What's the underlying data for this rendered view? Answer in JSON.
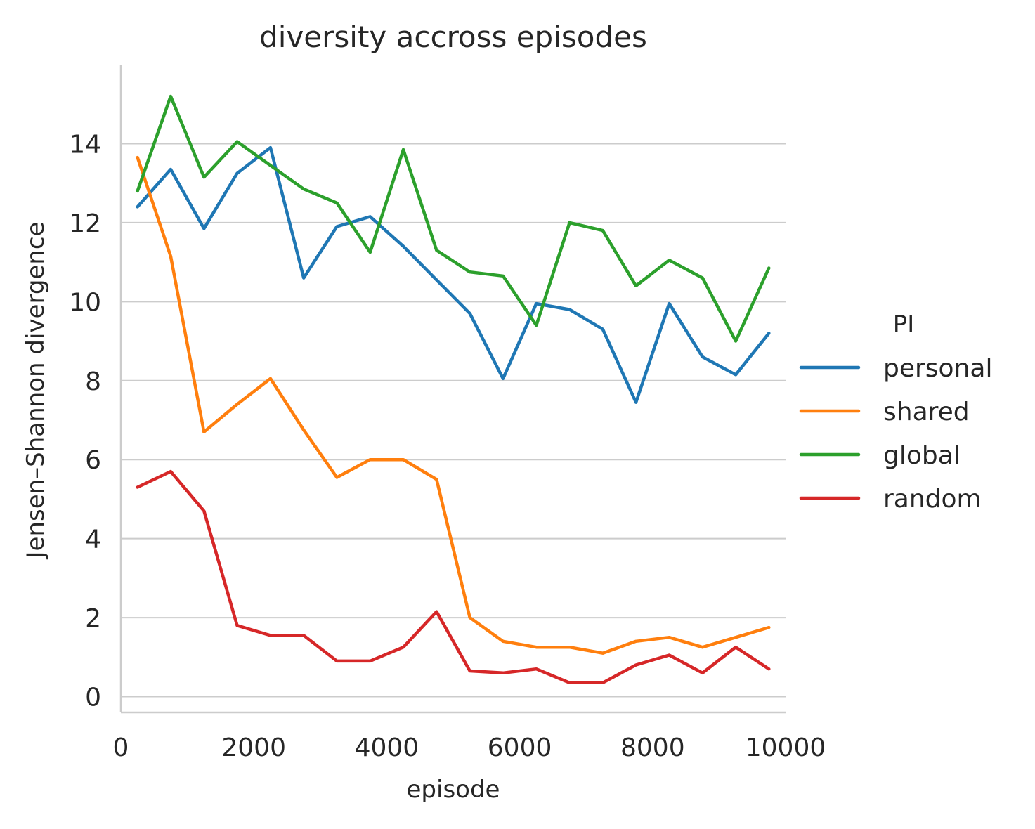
{
  "chart_data": {
    "type": "line",
    "title": "diversity accross episodes",
    "xlabel": "episode",
    "ylabel": "Jensen–Shannon divergence",
    "xlim": [
      0,
      10000
    ],
    "ylim": [
      -0.4,
      16.0
    ],
    "xticks": [
      0,
      2000,
      4000,
      6000,
      8000,
      10000
    ],
    "yticks": [
      0,
      2,
      4,
      6,
      8,
      10,
      12,
      14
    ],
    "grid": "y",
    "legend": {
      "title": "PI",
      "placement": "right"
    },
    "x": [
      250,
      750,
      1250,
      1750,
      2250,
      2750,
      3250,
      3750,
      4250,
      4750,
      5250,
      5750,
      6250,
      6750,
      7250,
      7750,
      8250,
      8750,
      9250,
      9750
    ],
    "series": [
      {
        "name": "personal",
        "color": "#1f77b4",
        "values": [
          12.4,
          13.35,
          11.85,
          13.25,
          13.9,
          10.6,
          11.9,
          12.15,
          11.4,
          10.55,
          9.7,
          8.05,
          9.95,
          9.8,
          9.3,
          7.45,
          9.95,
          8.6,
          8.15,
          9.2
        ]
      },
      {
        "name": "shared",
        "color": "#ff7f0e",
        "values": [
          13.65,
          11.15,
          6.7,
          7.4,
          8.05,
          6.75,
          5.55,
          6.0,
          6.0,
          5.5,
          2.0,
          1.4,
          1.25,
          1.25,
          1.1,
          1.4,
          1.5,
          1.25,
          1.5,
          1.75
        ]
      },
      {
        "name": "global",
        "color": "#2ca02c",
        "values": [
          12.8,
          15.2,
          13.15,
          14.05,
          13.45,
          12.85,
          12.5,
          11.25,
          13.85,
          11.3,
          10.75,
          10.65,
          9.4,
          12.0,
          11.8,
          10.4,
          11.05,
          10.6,
          9.0,
          10.85
        ]
      },
      {
        "name": "random",
        "color": "#d62728",
        "values": [
          5.3,
          5.7,
          4.7,
          1.8,
          1.55,
          1.55,
          0.9,
          0.9,
          1.25,
          2.15,
          0.65,
          0.6,
          0.7,
          0.35,
          0.35,
          0.8,
          1.05,
          0.6,
          1.25,
          0.7
        ]
      }
    ]
  }
}
